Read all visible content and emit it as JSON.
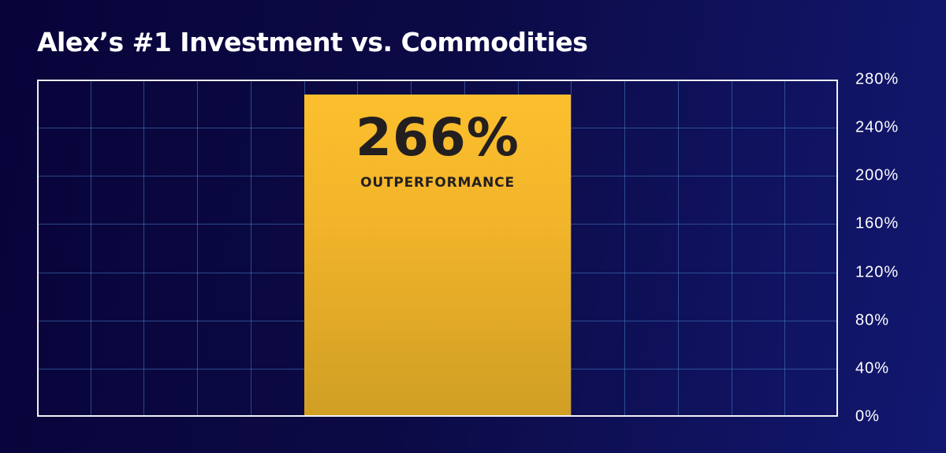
{
  "header": {
    "title": "Alex’s #1 Investment vs. Commodities"
  },
  "colors": {
    "background_left": "#08043a",
    "background_right": "#121870",
    "gridline": "#4682c8",
    "frame": "#f2f2f5",
    "bar_top": "#fcbf2d",
    "bar_bottom": "#d09f24",
    "bar_text": "#231f20"
  },
  "bar": {
    "value_label": "266%",
    "caption": "OUTPERFORMANCE"
  },
  "y_axis": {
    "ticks": [
      "280%",
      "240%",
      "200%",
      "160%",
      "120%",
      "80%",
      "40%",
      "0%"
    ]
  },
  "chart_data": {
    "type": "bar",
    "title": "Alex’s #1 Investment vs. Commodities",
    "categories": [
      "Alex’s #1 Investment vs. Commodities"
    ],
    "values": [
      266
    ],
    "data_labels": [
      "266% OUTPERFORMANCE"
    ],
    "xlabel": "",
    "ylabel": "",
    "ylim": [
      0,
      280
    ],
    "yticks": [
      0,
      40,
      80,
      120,
      160,
      200,
      240,
      280
    ],
    "ytick_labels": [
      "0%",
      "40%",
      "80%",
      "120%",
      "160%",
      "200%",
      "240%",
      "280%"
    ],
    "y_axis_position": "right",
    "grid": true,
    "grid_columns": 15,
    "bar_column_span": [
      5,
      10
    ],
    "legend": null
  }
}
